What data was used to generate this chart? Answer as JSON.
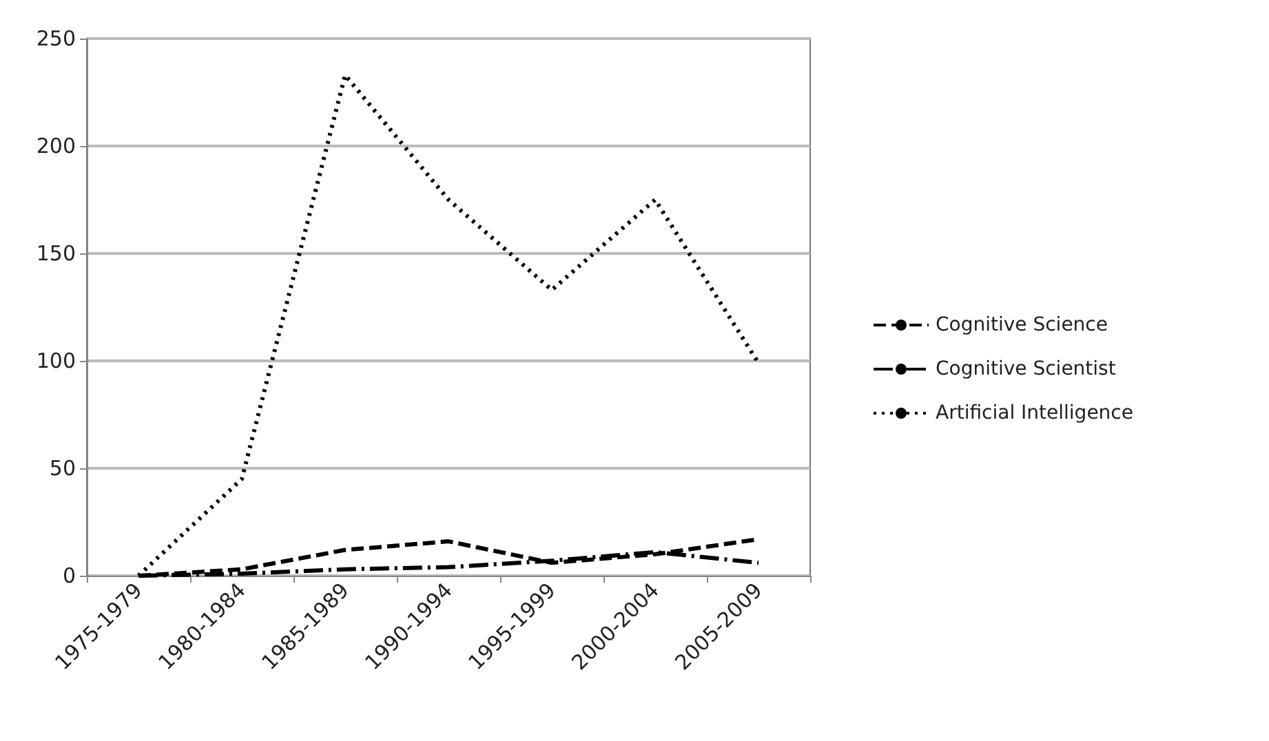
{
  "chart_data": {
    "type": "line",
    "categories": [
      "1975-1979",
      "1980-1984",
      "1985-1989",
      "1990-1994",
      "1995-1999",
      "2000-2004",
      "2005-2009"
    ],
    "series": [
      {
        "name": "Cognitive Science",
        "color": "#000000",
        "line_style": "dashed",
        "values": [
          0,
          3,
          12,
          16,
          6,
          10,
          17
        ]
      },
      {
        "name": "Cognitive Scientist",
        "color": "#000000",
        "line_style": "dashdot",
        "values": [
          0,
          1,
          3,
          4,
          7,
          11,
          6
        ]
      },
      {
        "name": "Artificial Intelligence",
        "color": "#000000",
        "line_style": "dotted",
        "values": [
          0,
          45,
          233,
          175,
          133,
          175,
          99
        ]
      }
    ],
    "ylim": [
      0,
      250
    ],
    "yticks": [
      0,
      50,
      100,
      150,
      200,
      250
    ],
    "grid": "y",
    "legend": "right",
    "marker": "none"
  }
}
